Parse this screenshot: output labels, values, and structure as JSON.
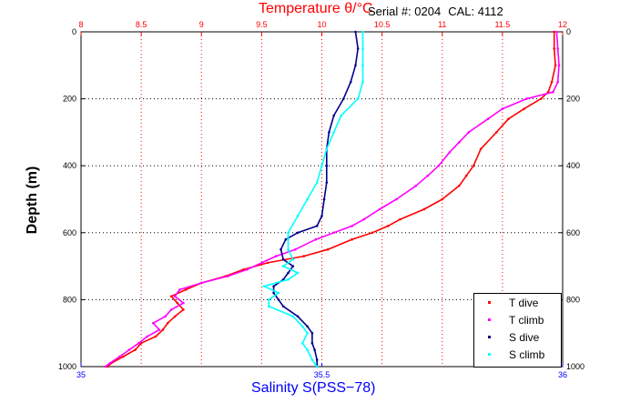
{
  "header": {
    "serial_label": "Serial #: 0204",
    "cal_label": "CAL: 4112"
  },
  "chart_data": {
    "type": "scatter",
    "top_axis": {
      "label": "Temperature θ/°C",
      "range": [
        8,
        12
      ],
      "ticks": [
        "8",
        "8.5",
        "9",
        "9.5",
        "10",
        "10.5",
        "11",
        "11.5",
        "12"
      ],
      "color": "#ff0000"
    },
    "bottom_axis": {
      "label": "Salinity S(PSS−78)",
      "range": [
        35,
        36
      ],
      "ticks": [
        "35",
        "35.5",
        "36"
      ],
      "color": "#0000ff"
    },
    "y_axis": {
      "label": "Depth (m)",
      "range": [
        0,
        1000
      ],
      "reversed": true,
      "ticks": [
        "0",
        "200",
        "400",
        "600",
        "800",
        "1000"
      ]
    },
    "grid": true,
    "legend_position": "bottom-right",
    "series": [
      {
        "name": "T dive",
        "axis": "top",
        "color": "#ff0000",
        "depth": [
          0,
          50,
          100,
          150,
          180,
          200,
          230,
          260,
          300,
          350,
          400,
          430,
          460,
          500,
          530,
          560,
          580,
          600,
          620,
          650,
          670,
          690,
          710,
          730,
          750,
          770,
          790,
          810,
          830,
          850,
          870,
          890,
          910,
          930,
          950,
          970,
          990,
          1000
        ],
        "values": [
          11.93,
          11.93,
          11.94,
          11.91,
          11.88,
          11.82,
          11.68,
          11.55,
          11.45,
          11.32,
          11.26,
          11.2,
          11.14,
          11.0,
          10.85,
          10.65,
          10.55,
          10.42,
          10.25,
          10.05,
          9.85,
          9.55,
          9.35,
          9.2,
          9.0,
          8.87,
          8.75,
          8.8,
          8.85,
          8.78,
          8.72,
          8.68,
          8.62,
          8.5,
          8.45,
          8.35,
          8.25,
          8.22
        ]
      },
      {
        "name": "T climb",
        "axis": "top",
        "color": "#ff00ff",
        "depth": [
          0,
          50,
          100,
          150,
          180,
          200,
          230,
          260,
          300,
          330,
          360,
          400,
          430,
          460,
          500,
          530,
          560,
          580,
          600,
          620,
          650,
          670,
          690,
          710,
          730,
          750,
          770,
          790,
          810,
          830,
          850,
          870,
          890,
          910,
          930,
          950,
          970,
          990,
          1000
        ],
        "values": [
          11.95,
          11.96,
          11.97,
          11.96,
          11.92,
          11.7,
          11.5,
          11.38,
          11.22,
          11.14,
          11.06,
          10.97,
          10.88,
          10.78,
          10.62,
          10.48,
          10.35,
          10.25,
          10.1,
          9.95,
          9.78,
          9.62,
          9.5,
          9.38,
          9.22,
          9.0,
          8.82,
          8.78,
          8.85,
          8.75,
          8.7,
          8.6,
          8.65,
          8.55,
          8.48,
          8.4,
          8.32,
          8.24,
          8.2
        ]
      },
      {
        "name": "S dive",
        "axis": "bottom",
        "color": "#00008b",
        "depth": [
          0,
          50,
          100,
          150,
          200,
          250,
          300,
          350,
          400,
          450,
          500,
          550,
          580,
          600,
          620,
          650,
          680,
          700,
          720,
          740,
          760,
          780,
          800,
          820,
          850,
          880,
          900,
          930,
          950,
          980,
          1000
        ],
        "values": [
          35.57,
          35.575,
          35.57,
          35.56,
          35.545,
          35.525,
          35.515,
          35.51,
          35.51,
          35.51,
          35.505,
          35.5,
          35.49,
          35.45,
          35.425,
          35.415,
          35.42,
          35.44,
          35.43,
          35.42,
          35.4,
          35.4,
          35.41,
          35.42,
          35.45,
          35.47,
          35.48,
          35.48,
          35.485,
          35.49,
          35.49
        ]
      },
      {
        "name": "S climb",
        "axis": "bottom",
        "color": "#00ffff",
        "depth": [
          0,
          50,
          100,
          150,
          200,
          250,
          300,
          350,
          400,
          450,
          500,
          550,
          600,
          620,
          650,
          680,
          700,
          720,
          740,
          760,
          780,
          800,
          820,
          850,
          880,
          900,
          930,
          950,
          980,
          1000
        ],
        "values": [
          35.585,
          35.585,
          35.585,
          35.585,
          35.575,
          35.54,
          35.525,
          35.51,
          35.5,
          35.49,
          35.47,
          35.45,
          35.43,
          35.43,
          35.43,
          35.44,
          35.42,
          35.45,
          35.43,
          35.38,
          35.41,
          35.39,
          35.39,
          35.44,
          35.46,
          35.47,
          35.46,
          35.47,
          35.48,
          35.49
        ]
      }
    ]
  }
}
